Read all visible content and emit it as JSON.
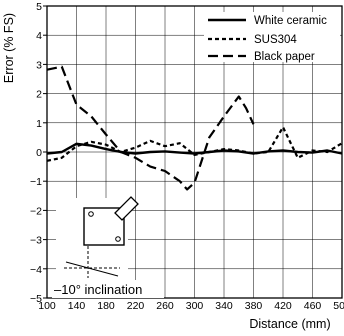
{
  "chart_data": {
    "type": "line",
    "title": "",
    "xlabel": "Distance (mm)",
    "ylabel": "Error (% FS)",
    "xlim": [
      100,
      500
    ],
    "ylim": [
      -5,
      5
    ],
    "xticks": [
      100,
      140,
      180,
      220,
      260,
      300,
      340,
      380,
      420,
      460,
      500
    ],
    "yticks": [
      -5,
      -4,
      -3,
      -2,
      -1,
      0,
      1,
      2,
      3,
      4,
      5
    ],
    "grid": true,
    "legend_position": "top-right",
    "series": [
      {
        "name": "White ceramic",
        "style": "solid",
        "points": [
          [
            100,
            -0.05
          ],
          [
            120,
            0.0
          ],
          [
            140,
            0.28
          ],
          [
            160,
            0.22
          ],
          [
            180,
            0.1
          ],
          [
            200,
            0.0
          ],
          [
            220,
            -0.05
          ],
          [
            240,
            0.0
          ],
          [
            260,
            0.02
          ],
          [
            280,
            -0.02
          ],
          [
            300,
            -0.05
          ],
          [
            320,
            0.0
          ],
          [
            340,
            0.05
          ],
          [
            360,
            0.02
          ],
          [
            380,
            -0.05
          ],
          [
            400,
            0.02
          ],
          [
            420,
            0.05
          ],
          [
            440,
            0.0
          ],
          [
            460,
            -0.02
          ],
          [
            480,
            0.05
          ],
          [
            500,
            -0.05
          ]
        ]
      },
      {
        "name": "SUS304",
        "style": "dotted",
        "points": [
          [
            100,
            -0.3
          ],
          [
            120,
            -0.2
          ],
          [
            140,
            0.2
          ],
          [
            160,
            0.35
          ],
          [
            180,
            0.25
          ],
          [
            200,
            0.0
          ],
          [
            220,
            0.15
          ],
          [
            240,
            0.38
          ],
          [
            260,
            0.2
          ],
          [
            280,
            0.3
          ],
          [
            300,
            -0.1
          ],
          [
            320,
            0.0
          ],
          [
            340,
            0.1
          ],
          [
            360,
            0.05
          ],
          [
            380,
            -0.05
          ],
          [
            400,
            0.0
          ],
          [
            420,
            0.85
          ],
          [
            440,
            -0.2
          ],
          [
            460,
            0.05
          ],
          [
            480,
            0.0
          ],
          [
            500,
            0.3
          ]
        ]
      },
      {
        "name": "Black paper",
        "style": "dashed",
        "points": [
          [
            100,
            2.82
          ],
          [
            120,
            2.92
          ],
          [
            140,
            1.62
          ],
          [
            160,
            1.22
          ],
          [
            180,
            0.6
          ],
          [
            200,
            0.0
          ],
          [
            220,
            -0.2
          ],
          [
            240,
            -0.5
          ],
          [
            260,
            -0.65
          ],
          [
            280,
            -1.0
          ],
          [
            290,
            -1.28
          ],
          [
            300,
            -1.05
          ],
          [
            320,
            0.5
          ],
          [
            340,
            1.22
          ],
          [
            360,
            1.9
          ],
          [
            370,
            1.5
          ],
          [
            380,
            0.95
          ]
        ]
      }
    ],
    "annotations": [
      "–10° inclination"
    ]
  },
  "colors": {
    "line": "#000000",
    "grid": "#000000",
    "background": "#ffffff"
  }
}
